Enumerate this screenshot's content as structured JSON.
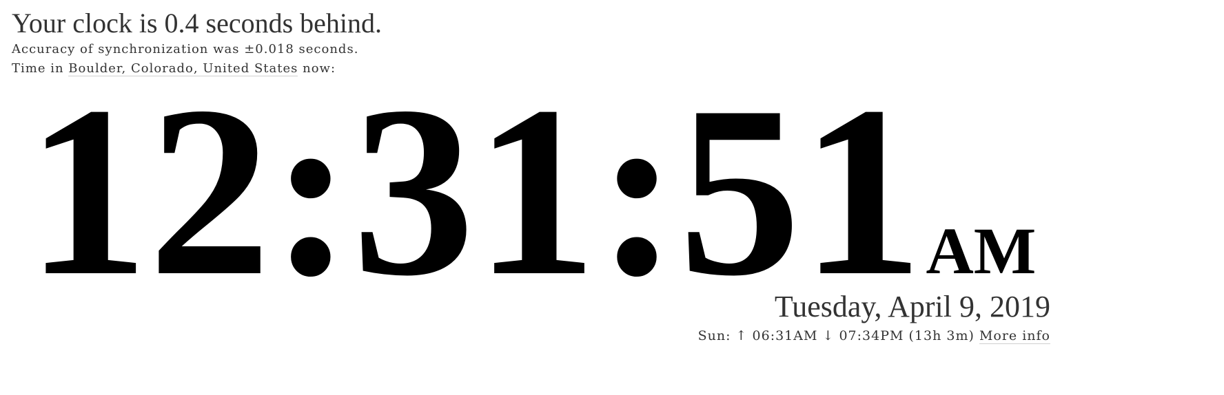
{
  "header": {
    "headline": "Your clock is 0.4 seconds behind.",
    "accuracy": "Accuracy of synchronization was ±0.018 seconds.",
    "location_prefix": "Time in",
    "location_link": "Boulder, Colorado, United States",
    "location_suffix": "now:"
  },
  "clock": {
    "time": "12:31:51",
    "ampm": "AM"
  },
  "date": {
    "text": "Tuesday, April 9, 2019"
  },
  "sun": {
    "prefix": "Sun:",
    "sunrise_arrow": "↑",
    "sunrise": "06:31AM",
    "sunset_arrow": "↓",
    "sunset": "07:34PM",
    "daylength": "(13h 3m)",
    "more_info": "More info"
  }
}
